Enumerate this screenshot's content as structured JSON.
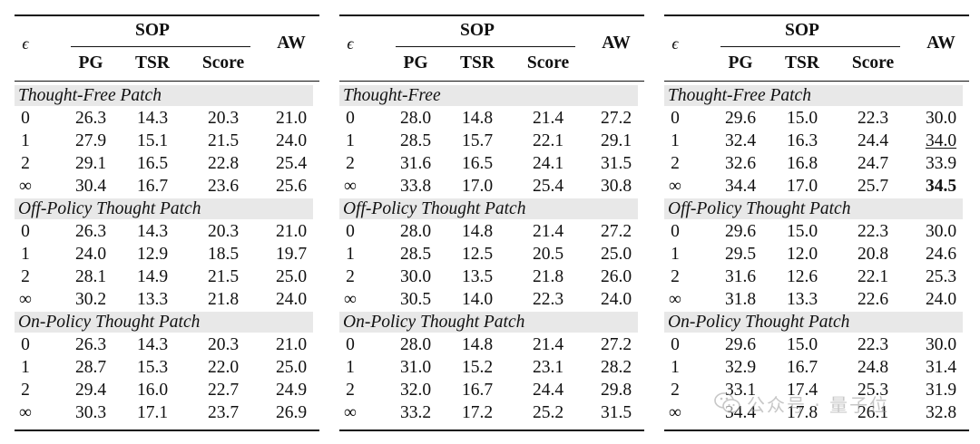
{
  "headers": {
    "epsilon": "ϵ",
    "group": "SOP",
    "aw": "AW",
    "columns": [
      "PG",
      "TSR",
      "Score"
    ]
  },
  "watermark": {
    "text": "公众号 · 量子位",
    "icon": "wechat-icon"
  },
  "emphasis": {
    "bold_cells": [
      [
        2,
        0,
        3,
        4
      ]
    ],
    "underline_cells": [
      [
        2,
        0,
        1,
        4
      ]
    ]
  },
  "tables": [
    {
      "sections": [
        {
          "title": "Thought-Free Patch",
          "rows": [
            [
              "0",
              "26.3",
              "14.3",
              "20.3",
              "21.0"
            ],
            [
              "1",
              "27.9",
              "15.1",
              "21.5",
              "24.0"
            ],
            [
              "2",
              "29.1",
              "16.5",
              "22.8",
              "25.4"
            ],
            [
              "∞",
              "30.4",
              "16.7",
              "23.6",
              "25.6"
            ]
          ]
        },
        {
          "title": "Off-Policy Thought Patch",
          "rows": [
            [
              "0",
              "26.3",
              "14.3",
              "20.3",
              "21.0"
            ],
            [
              "1",
              "24.0",
              "12.9",
              "18.5",
              "19.7"
            ],
            [
              "2",
              "28.1",
              "14.9",
              "21.5",
              "25.0"
            ],
            [
              "∞",
              "30.2",
              "13.3",
              "21.8",
              "24.0"
            ]
          ]
        },
        {
          "title": "On-Policy Thought Patch",
          "rows": [
            [
              "0",
              "26.3",
              "14.3",
              "20.3",
              "21.0"
            ],
            [
              "1",
              "28.7",
              "15.3",
              "22.0",
              "25.0"
            ],
            [
              "2",
              "29.4",
              "16.0",
              "22.7",
              "24.9"
            ],
            [
              "∞",
              "30.3",
              "17.1",
              "23.7",
              "26.9"
            ]
          ]
        }
      ]
    },
    {
      "sections": [
        {
          "title": "Thought-Free",
          "rows": [
            [
              "0",
              "28.0",
              "14.8",
              "21.4",
              "27.2"
            ],
            [
              "1",
              "28.5",
              "15.7",
              "22.1",
              "29.1"
            ],
            [
              "2",
              "31.6",
              "16.5",
              "24.1",
              "31.5"
            ],
            [
              "∞",
              "33.8",
              "17.0",
              "25.4",
              "30.8"
            ]
          ]
        },
        {
          "title": "Off-Policy Thought Patch",
          "rows": [
            [
              "0",
              "28.0",
              "14.8",
              "21.4",
              "27.2"
            ],
            [
              "1",
              "28.5",
              "12.5",
              "20.5",
              "25.0"
            ],
            [
              "2",
              "30.0",
              "13.5",
              "21.8",
              "26.0"
            ],
            [
              "∞",
              "30.5",
              "14.0",
              "22.3",
              "24.0"
            ]
          ]
        },
        {
          "title": "On-Policy Thought Patch",
          "rows": [
            [
              "0",
              "28.0",
              "14.8",
              "21.4",
              "27.2"
            ],
            [
              "1",
              "31.0",
              "15.2",
              "23.1",
              "28.2"
            ],
            [
              "2",
              "32.0",
              "16.7",
              "24.4",
              "29.8"
            ],
            [
              "∞",
              "33.2",
              "17.2",
              "25.2",
              "31.5"
            ]
          ]
        }
      ]
    },
    {
      "sections": [
        {
          "title": "Thought-Free Patch",
          "rows": [
            [
              "0",
              "29.6",
              "15.0",
              "22.3",
              "30.0"
            ],
            [
              "1",
              "32.4",
              "16.3",
              "24.4",
              "34.0"
            ],
            [
              "2",
              "32.6",
              "16.8",
              "24.7",
              "33.9"
            ],
            [
              "∞",
              "34.4",
              "17.0",
              "25.7",
              "34.5"
            ]
          ]
        },
        {
          "title": "Off-Policy Thought Patch",
          "rows": [
            [
              "0",
              "29.6",
              "15.0",
              "22.3",
              "30.0"
            ],
            [
              "1",
              "29.5",
              "12.0",
              "20.8",
              "24.6"
            ],
            [
              "2",
              "31.6",
              "12.6",
              "22.1",
              "25.3"
            ],
            [
              "∞",
              "31.8",
              "13.3",
              "22.6",
              "24.0"
            ]
          ]
        },
        {
          "title": "On-Policy Thought Patch",
          "rows": [
            [
              "0",
              "29.6",
              "15.0",
              "22.3",
              "30.0"
            ],
            [
              "1",
              "32.9",
              "16.7",
              "24.8",
              "31.4"
            ],
            [
              "2",
              "33.1",
              "17.4",
              "25.3",
              "31.9"
            ],
            [
              "∞",
              "34.4",
              "17.8",
              "26.1",
              "32.8"
            ]
          ]
        }
      ]
    }
  ]
}
